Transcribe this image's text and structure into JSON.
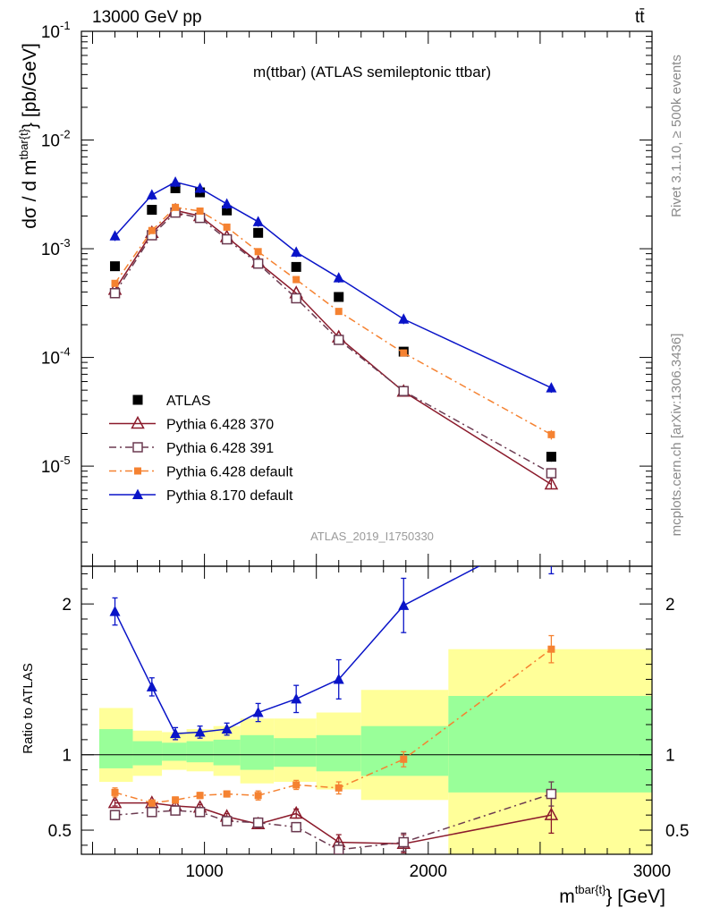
{
  "header": {
    "beam": "13000 GeV pp",
    "process": "tt̄"
  },
  "side_labels": {
    "rivet": "Rivet 3.1.10, ≥ 500k events",
    "mcplots": "mcplots.cern.ch [arXiv:1306.3436]"
  },
  "chart_data": [
    {
      "type": "scatter",
      "title": "m(ttbar) (ATLAS semileptonic ttbar)",
      "analysis_id": "ATLAS_2019_I1750330",
      "ylabel_main": "dσ / d m",
      "ylabel_sup": "tbar{t}",
      "ylabel_unit": "} [pb/GeV]",
      "xlabel_main": "m",
      "xlabel_sup": "tbar{t}",
      "xlabel_unit": "} [GeV]",
      "xlim": [
        450,
        3000
      ],
      "ylim": [
        1.2e-06,
        0.1
      ],
      "yscale": "log",
      "x_ticks": [
        {
          "value": 1000,
          "label": "1000"
        },
        {
          "value": 2000,
          "label": "2000"
        },
        {
          "value": 3000,
          "label": "3000"
        }
      ],
      "y_ticks": [
        {
          "value": 0.1,
          "label": "10",
          "exp": "-1"
        },
        {
          "value": 0.01,
          "label": "10",
          "exp": "-2"
        },
        {
          "value": 0.001,
          "label": "10",
          "exp": "-3"
        },
        {
          "value": 0.0001,
          "label": "10",
          "exp": "-4"
        },
        {
          "value": 1e-05,
          "label": "10",
          "exp": "-5"
        }
      ],
      "legend_position": "bottom-left",
      "x": [
        600,
        765,
        870,
        980,
        1100,
        1240,
        1410,
        1600,
        1890,
        2550
      ],
      "series": [
        {
          "name": "ATLAS",
          "color": "#000000",
          "marker": "square-filled",
          "line": "none",
          "values": [
            0.00069,
            0.00228,
            0.0036,
            0.0033,
            0.00225,
            0.0014,
            0.00068,
            0.00036,
            0.000113,
            1.22e-05
          ]
        },
        {
          "name": "Pythia 6.428 370",
          "color": "#8b1a2b",
          "marker": "triangle-open",
          "line": "solid",
          "values": [
            0.00042,
            0.0014,
            0.00225,
            0.002,
            0.00128,
            0.00075,
            0.00039,
            0.000153,
            4.85e-05,
            6.8e-06
          ]
        },
        {
          "name": "Pythia 6.428 391",
          "color": "#6b3a50",
          "marker": "square-open",
          "line": "dashdot",
          "values": [
            0.00039,
            0.00133,
            0.00215,
            0.00192,
            0.00122,
            0.00073,
            0.00035,
            0.000145,
            4.9e-05,
            8.6e-06
          ]
        },
        {
          "name": "Pythia 6.428 default",
          "color": "#f58231",
          "marker": "square-filled-small",
          "line": "dashdot",
          "values": [
            0.00048,
            0.00147,
            0.0024,
            0.00222,
            0.00158,
            0.00094,
            0.00052,
            0.000265,
            0.00011,
            1.95e-05
          ]
        },
        {
          "name": "Pythia 8.170 default",
          "color": "#0a14c8",
          "marker": "triangle-filled",
          "line": "solid",
          "values": [
            0.00131,
            0.00313,
            0.0041,
            0.0036,
            0.00258,
            0.00177,
            0.00093,
            0.00054,
            0.000225,
            5.25e-05
          ]
        }
      ]
    },
    {
      "type": "line",
      "ylabel": "Ratio to ATLAS",
      "xlim": [
        450,
        3000
      ],
      "ylim": [
        0.34,
        2.25
      ],
      "x_ticks": [
        {
          "value": 1000,
          "label": "1000"
        },
        {
          "value": 2000,
          "label": "2000"
        },
        {
          "value": 3000,
          "label": "3000"
        }
      ],
      "y_ticks": [
        {
          "value": 0.5,
          "label": "0.5"
        },
        {
          "value": 1,
          "label": "1"
        },
        {
          "value": 2,
          "label": "2"
        }
      ],
      "bins": [
        {
          "lo": 530,
          "hi": 680,
          "green": [
            0.91,
            1.17
          ],
          "yellow": [
            0.82,
            1.31
          ]
        },
        {
          "lo": 680,
          "hi": 810,
          "green": [
            0.93,
            1.09
          ],
          "yellow": [
            0.86,
            1.16
          ]
        },
        {
          "lo": 810,
          "hi": 920,
          "green": [
            0.96,
            1.08
          ],
          "yellow": [
            0.9,
            1.15
          ]
        },
        {
          "lo": 920,
          "hi": 1040,
          "green": [
            0.95,
            1.09
          ],
          "yellow": [
            0.89,
            1.17
          ]
        },
        {
          "lo": 1040,
          "hi": 1160,
          "green": [
            0.93,
            1.1
          ],
          "yellow": [
            0.86,
            1.19
          ]
        },
        {
          "lo": 1160,
          "hi": 1310,
          "green": [
            0.9,
            1.13
          ],
          "yellow": [
            0.81,
            1.24
          ]
        },
        {
          "lo": 1310,
          "hi": 1500,
          "green": [
            0.92,
            1.11
          ],
          "yellow": [
            0.82,
            1.24
          ]
        },
        {
          "lo": 1500,
          "hi": 1700,
          "green": [
            0.89,
            1.13
          ],
          "yellow": [
            0.77,
            1.28
          ]
        },
        {
          "lo": 1700,
          "hi": 2090,
          "green": [
            0.86,
            1.19
          ],
          "yellow": [
            0.7,
            1.43
          ]
        },
        {
          "lo": 2090,
          "hi": 3000,
          "green": [
            0.75,
            1.39
          ],
          "yellow": [
            0.33,
            1.7
          ]
        }
      ],
      "x": [
        600,
        765,
        870,
        980,
        1100,
        1240,
        1410,
        1600,
        1890,
        2550
      ],
      "series": [
        {
          "name": "Pythia 6.428 370",
          "color": "#8b1a2b",
          "marker": "triangle-open",
          "line": "solid",
          "values": [
            0.68,
            0.68,
            0.66,
            0.65,
            0.59,
            0.54,
            0.61,
            0.42,
            0.41,
            0.6
          ],
          "errors": [
            0.02,
            0.02,
            0.02,
            0.02,
            0.02,
            0.02,
            0.03,
            0.05,
            0.06,
            0.12
          ]
        },
        {
          "name": "Pythia 6.428 391",
          "color": "#6b3a50",
          "marker": "square-open",
          "line": "dashdot",
          "values": [
            0.6,
            0.62,
            0.63,
            0.62,
            0.56,
            0.55,
            0.52,
            0.37,
            0.42,
            0.74
          ],
          "errors": [
            0.03,
            0.02,
            0.02,
            0.02,
            0.02,
            0.03,
            0.03,
            0.05,
            0.06,
            0.08
          ]
        },
        {
          "name": "Pythia 6.428 default",
          "color": "#f58231",
          "marker": "square-filled-small",
          "line": "dashdot",
          "values": [
            0.75,
            0.68,
            0.7,
            0.73,
            0.74,
            0.73,
            0.8,
            0.78,
            0.97,
            1.7
          ],
          "errors": [
            0.03,
            0.02,
            0.02,
            0.02,
            0.02,
            0.03,
            0.03,
            0.04,
            0.05,
            0.09
          ]
        },
        {
          "name": "Pythia 8.170 default",
          "color": "#0a14c8",
          "marker": "triangle-filled",
          "line": "solid",
          "values": [
            1.95,
            1.45,
            1.14,
            1.15,
            1.17,
            1.28,
            1.37,
            1.5,
            1.99,
            2.5
          ],
          "errors": [
            0.09,
            0.06,
            0.04,
            0.04,
            0.04,
            0.06,
            0.09,
            0.13,
            0.18,
            0.3
          ]
        }
      ]
    }
  ]
}
